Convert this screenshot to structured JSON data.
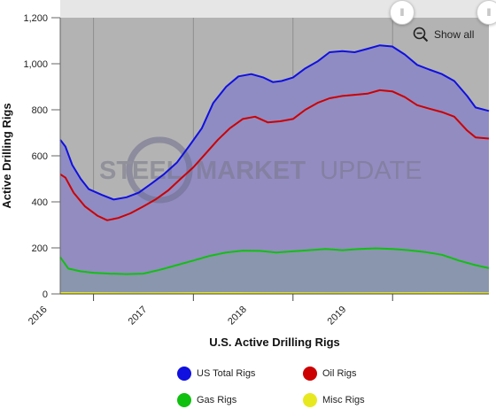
{
  "chart_data": {
    "type": "area",
    "title": "",
    "xlabel": "U.S. Active Drilling Rigs",
    "ylabel": "Active Drilling Rigs",
    "ylim": [
      0,
      1200
    ],
    "yticks": [
      0,
      200,
      400,
      600,
      800,
      1000,
      1200
    ],
    "yticks_text": [
      "0",
      "200",
      "400",
      "600",
      "800",
      "1,000",
      "1,200"
    ],
    "xlim": [
      "2015-09-01",
      "2019-12-20"
    ],
    "xticks": [
      {
        "label": "2016",
        "date": "2016-01-01"
      },
      {
        "label": "2017",
        "date": "2017-01-01"
      },
      {
        "label": "2018",
        "date": "2018-01-01"
      },
      {
        "label": "2019",
        "date": "2019-01-01"
      }
    ],
    "grid": "vertical",
    "legend_position": "bottom",
    "series": [
      {
        "name": "US Total Rigs",
        "color": "#1010e0",
        "fill": "#8f8cc4",
        "points": [
          [
            "2015-09-01",
            670
          ],
          [
            "2015-09-20",
            640
          ],
          [
            "2015-10-15",
            560
          ],
          [
            "2015-11-15",
            500
          ],
          [
            "2015-12-15",
            455
          ],
          [
            "2016-02-01",
            430
          ],
          [
            "2016-03-15",
            410
          ],
          [
            "2016-05-01",
            420
          ],
          [
            "2016-06-15",
            440
          ],
          [
            "2016-08-01",
            480
          ],
          [
            "2016-09-15",
            520
          ],
          [
            "2016-11-01",
            570
          ],
          [
            "2016-12-15",
            640
          ],
          [
            "2017-02-01",
            720
          ],
          [
            "2017-03-15",
            830
          ],
          [
            "2017-05-01",
            900
          ],
          [
            "2017-06-15",
            945
          ],
          [
            "2017-08-01",
            955
          ],
          [
            "2017-09-15",
            940
          ],
          [
            "2017-10-20",
            920
          ],
          [
            "2017-11-20",
            925
          ],
          [
            "2018-01-01",
            940
          ],
          [
            "2018-02-15",
            980
          ],
          [
            "2018-04-01",
            1010
          ],
          [
            "2018-05-15",
            1050
          ],
          [
            "2018-07-01",
            1055
          ],
          [
            "2018-08-15",
            1050
          ],
          [
            "2018-10-01",
            1065
          ],
          [
            "2018-11-15",
            1080
          ],
          [
            "2018-12-31",
            1075
          ],
          [
            "2019-02-15",
            1040
          ],
          [
            "2019-04-01",
            995
          ],
          [
            "2019-05-15",
            975
          ],
          [
            "2019-07-01",
            955
          ],
          [
            "2019-08-15",
            925
          ],
          [
            "2019-10-01",
            860
          ],
          [
            "2019-11-01",
            810
          ],
          [
            "2019-12-20",
            795
          ]
        ]
      },
      {
        "name": "Oil Rigs",
        "color": "#cc0000",
        "fill": "#9a8cbd",
        "points": [
          [
            "2015-09-01",
            520
          ],
          [
            "2015-09-20",
            505
          ],
          [
            "2015-10-20",
            440
          ],
          [
            "2015-12-01",
            380
          ],
          [
            "2016-01-15",
            340
          ],
          [
            "2016-02-20",
            320
          ],
          [
            "2016-04-01",
            330
          ],
          [
            "2016-05-15",
            350
          ],
          [
            "2016-07-01",
            380
          ],
          [
            "2016-08-15",
            410
          ],
          [
            "2016-10-01",
            450
          ],
          [
            "2016-11-15",
            500
          ],
          [
            "2017-01-01",
            550
          ],
          [
            "2017-02-15",
            610
          ],
          [
            "2017-04-01",
            670
          ],
          [
            "2017-05-15",
            720
          ],
          [
            "2017-07-01",
            760
          ],
          [
            "2017-08-15",
            770
          ],
          [
            "2017-10-01",
            745
          ],
          [
            "2017-11-15",
            750
          ],
          [
            "2018-01-01",
            760
          ],
          [
            "2018-02-15",
            800
          ],
          [
            "2018-04-01",
            830
          ],
          [
            "2018-05-15",
            850
          ],
          [
            "2018-07-01",
            860
          ],
          [
            "2018-08-15",
            865
          ],
          [
            "2018-10-01",
            870
          ],
          [
            "2018-11-15",
            885
          ],
          [
            "2018-12-31",
            880
          ],
          [
            "2019-02-15",
            855
          ],
          [
            "2019-04-01",
            820
          ],
          [
            "2019-05-15",
            805
          ],
          [
            "2019-07-01",
            790
          ],
          [
            "2019-08-15",
            770
          ],
          [
            "2019-10-01",
            710
          ],
          [
            "2019-11-01",
            680
          ],
          [
            "2019-12-20",
            675
          ]
        ]
      },
      {
        "name": "Gas Rigs",
        "color": "#10c010",
        "fill": "#7aa88a",
        "points": [
          [
            "2015-09-01",
            160
          ],
          [
            "2015-10-01",
            110
          ],
          [
            "2015-11-15",
            98
          ],
          [
            "2016-01-01",
            92
          ],
          [
            "2016-03-01",
            88
          ],
          [
            "2016-05-01",
            86
          ],
          [
            "2016-07-01",
            88
          ],
          [
            "2016-09-01",
            105
          ],
          [
            "2016-11-01",
            125
          ],
          [
            "2017-01-01",
            145
          ],
          [
            "2017-03-01",
            165
          ],
          [
            "2017-05-01",
            180
          ],
          [
            "2017-07-01",
            188
          ],
          [
            "2017-09-01",
            187
          ],
          [
            "2017-11-01",
            180
          ],
          [
            "2018-01-01",
            185
          ],
          [
            "2018-03-01",
            190
          ],
          [
            "2018-05-01",
            195
          ],
          [
            "2018-07-01",
            190
          ],
          [
            "2018-09-01",
            195
          ],
          [
            "2018-11-01",
            198
          ],
          [
            "2019-01-01",
            195
          ],
          [
            "2019-03-01",
            190
          ],
          [
            "2019-05-01",
            182
          ],
          [
            "2019-07-01",
            170
          ],
          [
            "2019-09-01",
            145
          ],
          [
            "2019-11-01",
            125
          ],
          [
            "2019-12-20",
            112
          ]
        ]
      },
      {
        "name": "Misc Rigs",
        "color": "#e8e820",
        "fill": "#c8c060",
        "points": [
          [
            "2015-09-01",
            4
          ],
          [
            "2016-06-01",
            3
          ],
          [
            "2017-06-01",
            4
          ],
          [
            "2018-06-01",
            3
          ],
          [
            "2019-06-01",
            4
          ],
          [
            "2019-12-20",
            3
          ]
        ]
      }
    ]
  },
  "watermark": {
    "part1": "STEEL",
    "part2": "MARKET",
    "part3": "UPDATE"
  },
  "show_all_label": "Show all",
  "zoom_icon": "zoom-out-icon",
  "plot_bg": "#b3b3b3"
}
